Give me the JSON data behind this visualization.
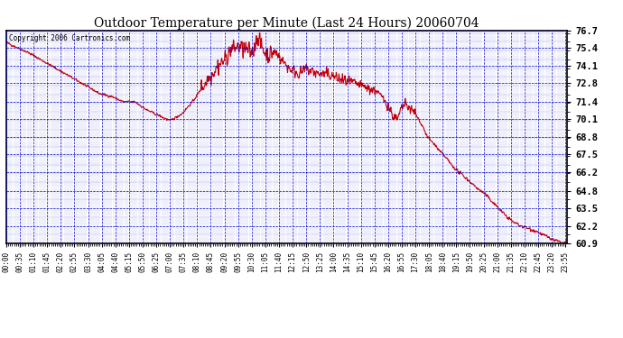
{
  "title": "Outdoor Temperature per Minute (Last 24 Hours) 20060704",
  "copyright": "Copyright 2006 Cartronics.com",
  "yticks": [
    60.9,
    62.2,
    63.5,
    64.8,
    66.2,
    67.5,
    68.8,
    70.1,
    71.4,
    72.8,
    74.1,
    75.4,
    76.7
  ],
  "ylim": [
    60.9,
    76.7
  ],
  "line_color": "#cc0000",
  "background_color": "#ffffff",
  "grid_color": "#0000cc",
  "text_color": "#000000",
  "title_color": "#000000",
  "xtick_color": "#000000",
  "xtick_interval": 35
}
